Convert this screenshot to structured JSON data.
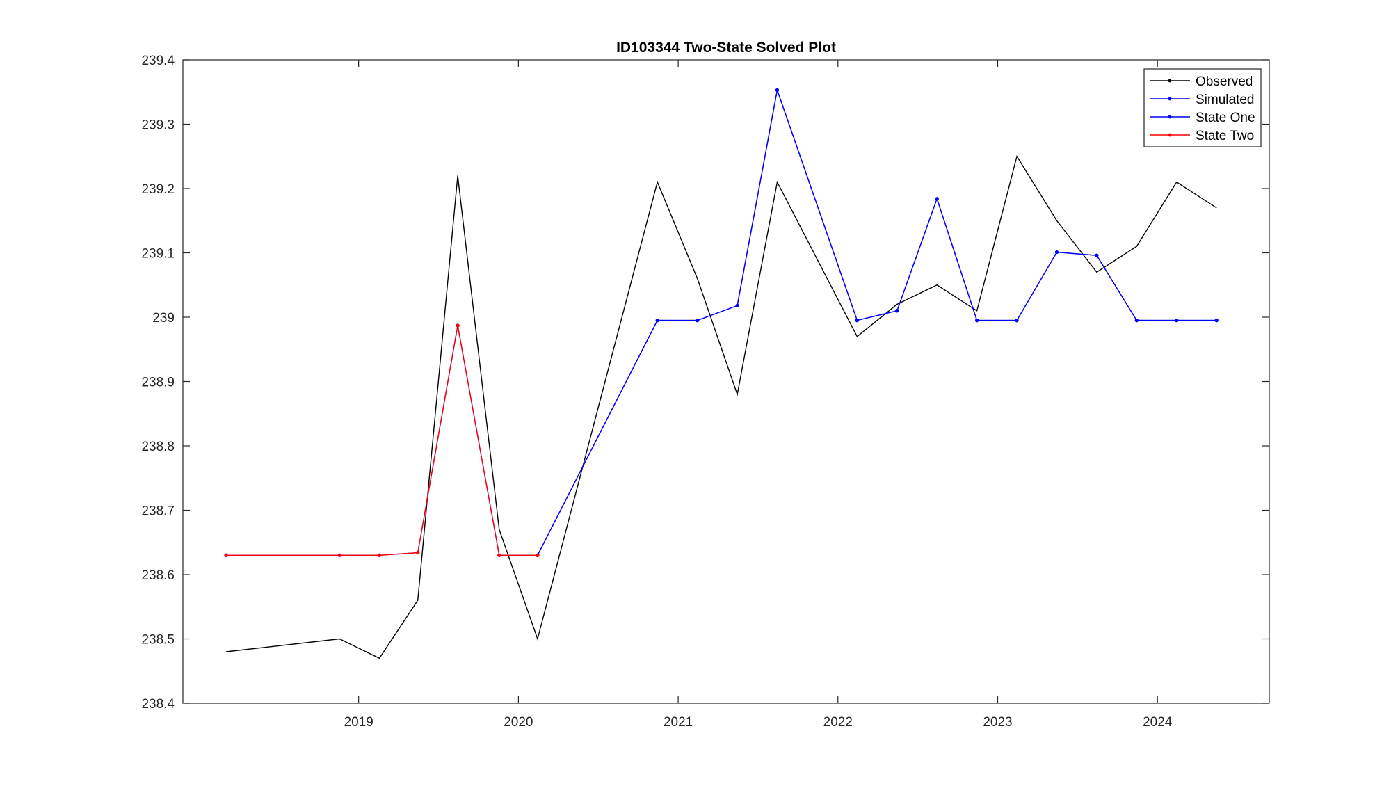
{
  "chart_data": {
    "type": "line",
    "title": "ID103344 Two-State Solved Plot",
    "xlabel": "",
    "ylabel": "",
    "x_tick_labels": [
      "2019",
      "2020",
      "2021",
      "2022",
      "2023",
      "2024"
    ],
    "x_ticks": [
      2019.0,
      2020.0,
      2021.0,
      2022.0,
      2023.0,
      2024.0
    ],
    "xlim": [
      2017.9,
      2024.7
    ],
    "y_tick_labels": [
      "238.4",
      "238.5",
      "238.6",
      "238.7",
      "238.8",
      "238.9",
      "239",
      "239.1",
      "239.2",
      "239.3",
      "239.4"
    ],
    "y_ticks": [
      238.4,
      238.5,
      238.6,
      238.7,
      238.8,
      238.9,
      239.0,
      239.1,
      239.2,
      239.3,
      239.4
    ],
    "ylim": [
      238.4,
      239.4
    ],
    "grid": false,
    "legend_position": "top-right",
    "series": [
      {
        "name": "Observed",
        "color": "#000000",
        "x": [
          2018.17,
          2018.88,
          2019.13,
          2019.37,
          2019.62,
          2019.88,
          2020.12,
          2020.87,
          2021.12,
          2021.37,
          2021.62,
          2022.12,
          2022.37,
          2022.62,
          2022.87,
          2023.12,
          2023.37,
          2023.62,
          2023.87,
          2024.12,
          2024.37
        ],
        "values": [
          238.48,
          238.5,
          238.47,
          238.56,
          239.22,
          238.67,
          238.5,
          239.21,
          239.06,
          238.88,
          239.21,
          238.97,
          239.02,
          239.05,
          239.01,
          239.25,
          239.15,
          239.07,
          239.11,
          239.21,
          239.17
        ]
      },
      {
        "name": "Simulated",
        "color": "#0000ff",
        "x": [
          2018.17,
          2018.88,
          2019.13,
          2019.37,
          2019.62,
          2019.88,
          2020.12,
          2020.87,
          2021.12,
          2021.37,
          2021.62,
          2022.12,
          2022.37,
          2022.62,
          2022.87,
          2023.12,
          2023.37,
          2023.62,
          2023.87,
          2024.12,
          2024.37
        ],
        "values": [
          238.63,
          238.63,
          238.63,
          238.634,
          238.987,
          238.63,
          238.63,
          238.995,
          238.995,
          239.018,
          239.353,
          238.995,
          239.01,
          239.184,
          238.995,
          238.995,
          239.101,
          239.096,
          238.995,
          238.995,
          238.995
        ]
      },
      {
        "name": "State One",
        "color": "#0000ff",
        "x": [
          2020.12,
          2020.87,
          2021.12,
          2021.37,
          2021.62,
          2022.12,
          2022.37,
          2022.62,
          2022.87,
          2023.12,
          2023.37,
          2023.62,
          2023.87,
          2024.12,
          2024.37
        ],
        "values": [
          238.63,
          238.995,
          238.995,
          239.018,
          239.353,
          238.995,
          239.01,
          239.184,
          238.995,
          238.995,
          239.101,
          239.096,
          238.995,
          238.995,
          238.995
        ]
      },
      {
        "name": "State Two",
        "color": "#ff0000",
        "x": [
          2018.17,
          2018.88,
          2019.13,
          2019.37,
          2019.62,
          2019.88,
          2020.12
        ],
        "values": [
          238.63,
          238.63,
          238.63,
          238.634,
          238.987,
          238.63,
          238.63
        ]
      }
    ]
  }
}
